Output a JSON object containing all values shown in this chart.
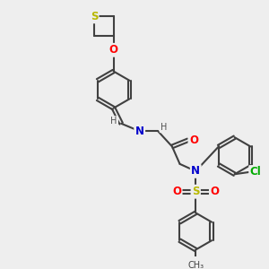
{
  "bg_color": "#eeeeee",
  "bond_color": "#404040",
  "bond_width": 1.5,
  "atom_colors": {
    "S": "#b8b800",
    "O": "#ff0000",
    "N": "#0000cc",
    "Cl": "#00aa00",
    "C": "#404040",
    "H": "#505050"
  },
  "font_size": 8.5,
  "title": ""
}
